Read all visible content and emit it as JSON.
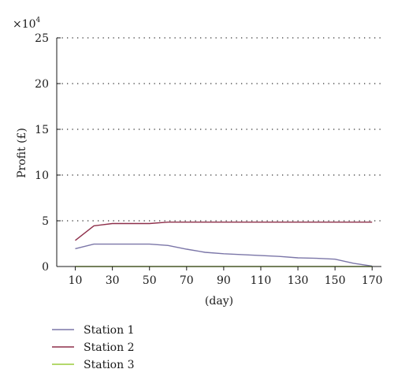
{
  "chart_data": {
    "type": "line",
    "multiplier_label": "×10",
    "multiplier_exponent": "4",
    "ylabel": "Profit (£)",
    "xlabel": "(day)",
    "ylim": [
      0,
      250000
    ],
    "xlim": [
      0,
      175
    ],
    "y_ticks": [
      0,
      50000,
      100000,
      150000,
      200000,
      250000
    ],
    "y_tick_labels": [
      "0",
      "5",
      "10",
      "15",
      "20",
      "25"
    ],
    "x_ticks": [
      10,
      30,
      50,
      70,
      90,
      110,
      130,
      150,
      170
    ],
    "x_tick_labels": [
      "10",
      "30",
      "50",
      "70",
      "90",
      "110",
      "130",
      "150",
      "170"
    ],
    "grid": "horizontal dotted",
    "legend_position": "bottom-left",
    "series": [
      {
        "name": "Station 1",
        "color": "#7b76a8",
        "x": [
          10,
          20,
          30,
          40,
          50,
          60,
          70,
          80,
          90,
          100,
          110,
          120,
          130,
          140,
          150,
          160,
          170
        ],
        "y": [
          19500,
          24500,
          24500,
          24500,
          24500,
          23000,
          19000,
          15500,
          14000,
          13000,
          12000,
          11000,
          9500,
          9000,
          8000,
          3500,
          500
        ]
      },
      {
        "name": "Station 2",
        "color": "#8e2f4a",
        "x": [
          10,
          20,
          30,
          40,
          50,
          60,
          70,
          80,
          90,
          100,
          110,
          120,
          130,
          140,
          150,
          160,
          170
        ],
        "y": [
          28500,
          44500,
          47000,
          47000,
          47000,
          48500,
          48500,
          48500,
          48500,
          48500,
          48500,
          48500,
          48500,
          48500,
          48500,
          48500,
          48500
        ]
      },
      {
        "name": "Station 3",
        "color": "#9ccc3c",
        "x": [
          10,
          20,
          30,
          40,
          50,
          60,
          70,
          80,
          90,
          100,
          110,
          120,
          130,
          140,
          150,
          160,
          170
        ],
        "y": [
          0,
          0,
          0,
          0,
          0,
          0,
          0,
          0,
          0,
          0,
          0,
          0,
          0,
          0,
          0,
          0,
          0
        ]
      }
    ]
  }
}
